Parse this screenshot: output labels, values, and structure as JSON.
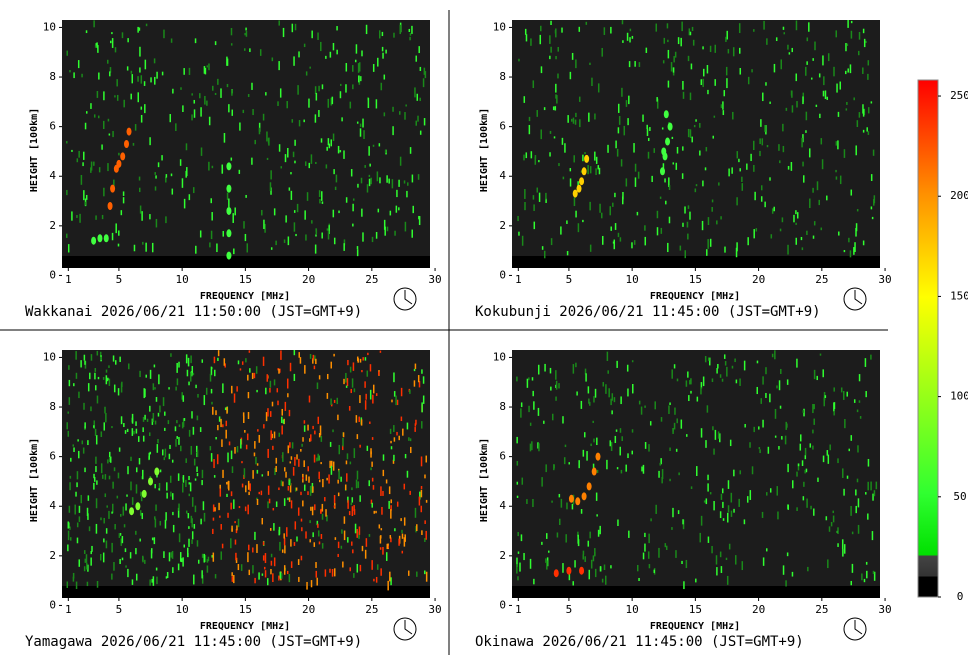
{
  "chart_data": [
    {
      "type": "ionogram",
      "title": "Wakkanai 2026/06/21 11:50:00 (JST=GMT+9)",
      "x_label": "FREQUENCY [MHz]",
      "y_label": "HEIGHT [100km]",
      "xlim": [
        0.5,
        29.6
      ],
      "ylim": [
        0.3,
        10.3
      ],
      "xticks": [
        1,
        5,
        10,
        15,
        20,
        25,
        30
      ],
      "yticks": [
        0,
        2,
        4,
        6,
        8,
        10
      ],
      "traces": [
        {
          "color": "#ff6000",
          "x": [
            4.3,
            4.5,
            4.8,
            5.0,
            5.3,
            5.6,
            5.8
          ],
          "y": [
            2.8,
            3.5,
            4.3,
            4.5,
            4.8,
            5.3,
            5.8
          ]
        },
        {
          "color": "#40ff40",
          "x": [
            3.0,
            3.5,
            4.0
          ],
          "y": [
            1.4,
            1.5,
            1.5
          ]
        },
        {
          "color": "#40ff40",
          "x": [
            13.7,
            13.7,
            13.7,
            13.7,
            13.7
          ],
          "y": [
            0.8,
            1.7,
            2.6,
            3.5,
            4.4
          ]
        }
      ]
    },
    {
      "type": "ionogram",
      "title": "Kokubunji 2026/06/21 11:45:00 (JST=GMT+9)",
      "x_label": "FREQUENCY [MHz]",
      "y_label": "HEIGHT [100km]",
      "xlim": [
        0.5,
        29.6
      ],
      "ylim": [
        0.3,
        10.3
      ],
      "xticks": [
        1,
        5,
        10,
        15,
        20,
        25,
        30
      ],
      "yticks": [
        0,
        2,
        4,
        6,
        8,
        10
      ],
      "traces": [
        {
          "color": "#ffd000",
          "x": [
            5.5,
            5.8,
            6.0,
            6.2,
            6.4
          ],
          "y": [
            3.3,
            3.5,
            3.8,
            4.2,
            4.7
          ]
        },
        {
          "color": "#40ff40",
          "x": [
            12.4,
            12.6,
            12.8,
            13.0,
            12.7,
            12.5
          ],
          "y": [
            4.2,
            4.8,
            5.4,
            6.0,
            6.5,
            5.0
          ]
        }
      ]
    },
    {
      "type": "ionogram",
      "title": "Yamagawa 2026/06/21 11:45:00 (JST=GMT+9)",
      "x_label": "FREQUENCY [MHz]",
      "y_label": "HEIGHT [100km]",
      "xlim": [
        0.5,
        29.6
      ],
      "ylim": [
        0.3,
        10.3
      ],
      "xticks": [
        1,
        5,
        10,
        15,
        20,
        25,
        30
      ],
      "yticks": [
        0,
        2,
        4,
        6,
        8,
        10
      ],
      "traces": [
        {
          "color": "#80ff30",
          "x": [
            6.0,
            6.5,
            7.0,
            7.5,
            8.0
          ],
          "y": [
            3.8,
            4.0,
            4.5,
            5.0,
            5.4
          ]
        }
      ]
    },
    {
      "type": "ionogram",
      "title": "Okinawa 2026/06/21 11:45:00 (JST=GMT+9)",
      "x_label": "FREQUENCY [MHz]",
      "y_label": "HEIGHT [100km]",
      "xlim": [
        0.5,
        29.6
      ],
      "ylim": [
        0.3,
        10.3
      ],
      "xticks": [
        1,
        5,
        10,
        15,
        20,
        25,
        30
      ],
      "yticks": [
        0,
        2,
        4,
        6,
        8,
        10
      ],
      "traces": [
        {
          "color": "#ff8000",
          "x": [
            5.2,
            5.7,
            6.2,
            6.6,
            7.0,
            7.3
          ],
          "y": [
            4.3,
            4.2,
            4.4,
            4.8,
            5.4,
            6.0
          ]
        },
        {
          "color": "#ff3000",
          "x": [
            4.0,
            5.0,
            6.0
          ],
          "y": [
            1.3,
            1.4,
            1.4
          ]
        }
      ]
    },
    {
      "type": "colorbar",
      "ylim": [
        0,
        258
      ],
      "yticks": [
        0,
        50,
        100,
        150,
        200,
        250
      ]
    }
  ]
}
